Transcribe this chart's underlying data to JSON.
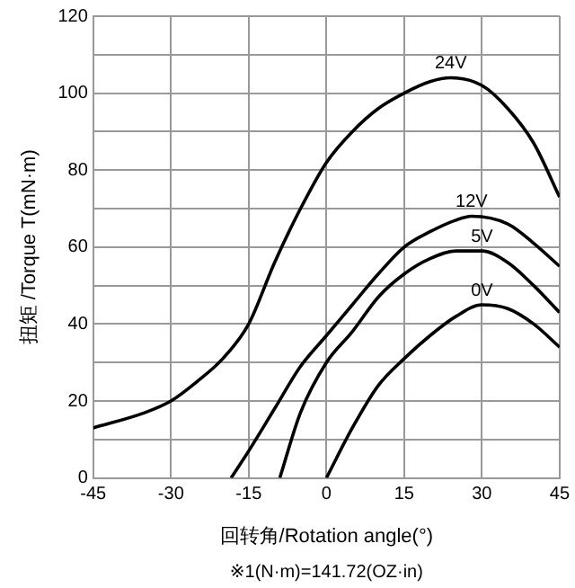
{
  "chart_data": {
    "type": "line",
    "xlabel": "回转角/Rotation angle(°)",
    "ylabel": "扭矩 /Torque T(mN·m)",
    "annotations": [
      "※1(N·m)=141.72(OZ·in)"
    ],
    "xlim": [
      -45,
      45
    ],
    "xticks": [
      -45,
      -30,
      -15,
      0,
      15,
      30,
      45
    ],
    "ylim": [
      0,
      120
    ],
    "yticks": [
      0,
      {
        "value": 10,
        "label": null
      },
      20,
      {
        "value": 30,
        "label": null
      },
      40,
      {
        "value": 50,
        "label": null
      },
      60,
      {
        "value": 70,
        "label": null
      },
      80,
      {
        "value": 90,
        "label": null
      },
      100,
      {
        "value": 110,
        "label": null
      },
      120
    ],
    "grid": true,
    "legend": false,
    "marker": "none",
    "line_style": "solid",
    "series": [
      {
        "name": "24V",
        "color": "#000000",
        "x": [
          -45,
          -35,
          -30,
          -25,
          -20,
          -15,
          -10,
          -5,
          0,
          5,
          10,
          15,
          20,
          24,
          30,
          35,
          40,
          45
        ],
        "values": [
          13,
          17,
          20,
          25,
          31,
          40,
          56,
          70,
          82,
          90,
          96,
          100,
          103,
          104,
          102,
          96,
          87,
          73
        ]
      },
      {
        "name": "12V",
        "color": "#000000",
        "x": [
          -18.4,
          -15,
          -10,
          -5,
          0,
          5,
          10,
          15,
          20,
          25,
          28,
          35,
          40,
          45
        ],
        "values": [
          0,
          7,
          18,
          29,
          37,
          45,
          53,
          60,
          64,
          67,
          68,
          66,
          61,
          55
        ]
      },
      {
        "name": "5V",
        "color": "#000000",
        "x": [
          -9,
          -5,
          0,
          5,
          10,
          15,
          20,
          25,
          30,
          35,
          40,
          45
        ],
        "values": [
          0,
          17,
          30,
          38,
          47,
          53,
          57,
          59,
          59,
          56,
          50,
          43
        ]
      },
      {
        "name": "0V",
        "color": "#000000",
        "x": [
          0,
          5,
          10,
          15,
          20,
          25,
          30,
          35,
          40,
          45
        ],
        "values": [
          0,
          13,
          24,
          31,
          37,
          42,
          45,
          44,
          40,
          34
        ]
      }
    ]
  }
}
